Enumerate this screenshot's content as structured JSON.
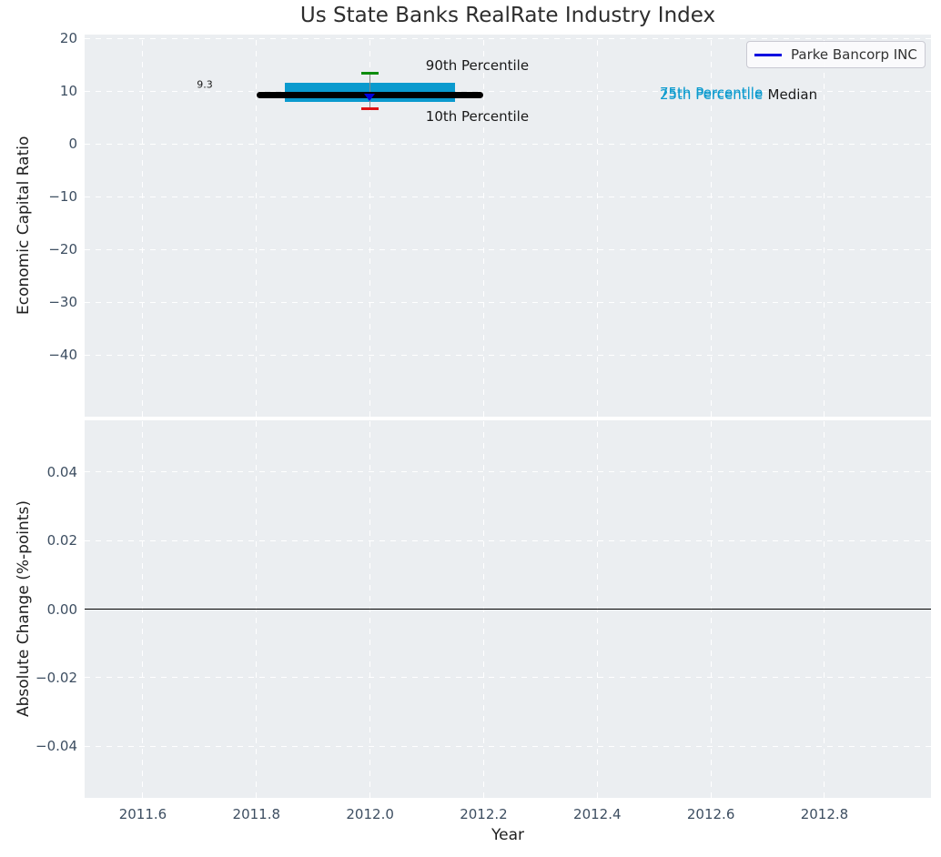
{
  "title": "Us State Banks RealRate Industry Index",
  "legend": {
    "label": "Parke Bancorp INC",
    "line_color": "#0000e0"
  },
  "colors": {
    "plot_background": "#ebeef1",
    "gridline": "#ffffff",
    "tick_label": "#3d4e61",
    "box_fill": "#0a9ace",
    "median_line": "#000000",
    "whisker": "#888888",
    "p90_cap": "#0d8c0d",
    "p10_cap": "#e01212",
    "company_marker": "#0000dd",
    "zero_line": "#000000",
    "annotation_dark": "#1a1a1a",
    "annotation_cyan": "#0a9ace"
  },
  "chart_data": [
    {
      "type": "box",
      "name": "economic-capital-ratio-panel",
      "ylabel": "Economic Capital Ratio",
      "ylim": [
        -51.7,
        20.7
      ],
      "yticks": [
        20,
        10,
        0,
        -10,
        -20,
        -30,
        -40
      ],
      "ytick_labels": [
        "20",
        "10",
        "0",
        "−10",
        "−20",
        "−30",
        "−40"
      ],
      "xlim": [
        2011.4975,
        2012.9875
      ],
      "xticks": [
        2011.6,
        2011.8,
        2012.0,
        2012.2,
        2012.4,
        2012.6,
        2012.8
      ],
      "grid": true,
      "box": {
        "x": 2012.0,
        "median": 9.3,
        "q1": 7.9,
        "q3": 11.6,
        "p10": 6.7,
        "p90": 13.4,
        "box_x_span": [
          2011.85,
          2012.15
        ],
        "median_x_span": [
          2011.8,
          2012.2
        ],
        "cap_half_width": 0.015
      },
      "series": [
        {
          "name": "Parke Bancorp INC",
          "x": [
            2012.0
          ],
          "values": [
            9.3
          ],
          "color": "#0000dd",
          "marker": "triangle-down"
        }
      ],
      "annotations": [
        {
          "text": "9.3",
          "x": 2011.709,
          "y": 11.3,
          "align": "center",
          "color": "#1a1a1a",
          "size": 11
        },
        {
          "text": "90th Percentile",
          "x": 2012.098,
          "y": 14.9,
          "align": "left",
          "color": "#1a1a1a",
          "size": 15
        },
        {
          "text": "10th Percentile",
          "x": 2012.098,
          "y": 5.1,
          "align": "left",
          "color": "#1a1a1a",
          "size": 15
        },
        {
          "text": "75th Percentile",
          "x": 2012.51,
          "y": 9.75,
          "align": "left",
          "color": "#0a9ace",
          "size": 15
        },
        {
          "text": "25th Percentile",
          "x": 2012.51,
          "y": 9.4,
          "align": "left",
          "color": "#0a9ace",
          "size": 15
        },
        {
          "text": "Median",
          "x": 2012.7,
          "y": 9.4,
          "align": "left",
          "color": "#1a1a1a",
          "size": 15
        }
      ]
    },
    {
      "type": "line",
      "name": "absolute-change-panel",
      "ylabel": "Absolute Change (%-points)",
      "xlabel": "Year",
      "ylim": [
        -0.055,
        0.055
      ],
      "yticks": [
        0.04,
        0.02,
        0.0,
        -0.02,
        -0.04
      ],
      "ytick_labels": [
        "0.04",
        "0.02",
        "0.00",
        "−0.02",
        "−0.04"
      ],
      "xlim": [
        2011.4975,
        2012.9875
      ],
      "xticks": [
        2011.6,
        2011.8,
        2012.0,
        2012.2,
        2012.4,
        2012.6,
        2012.8
      ],
      "xtick_labels": [
        "2011.6",
        "2011.8",
        "2012.0",
        "2012.2",
        "2012.4",
        "2012.6",
        "2012.8"
      ],
      "grid": true,
      "zero_line": 0.0,
      "series": []
    }
  ]
}
